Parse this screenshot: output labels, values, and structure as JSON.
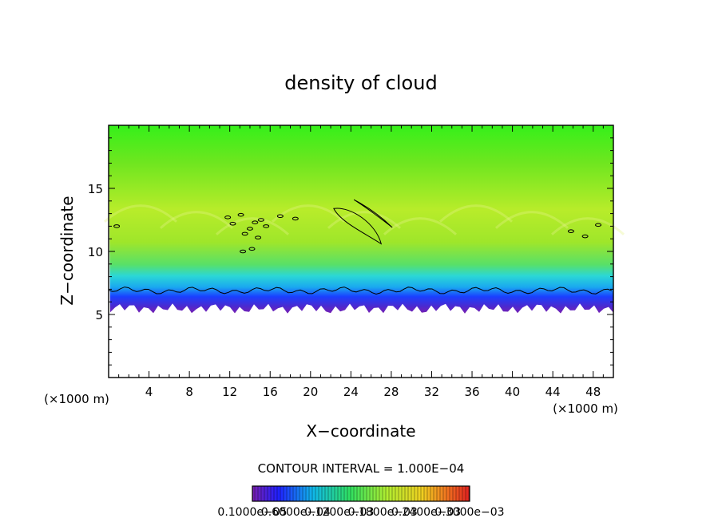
{
  "chart_data": {
    "type": "heatmap",
    "title": "density of cloud",
    "xlabel": "X−coordinate",
    "ylabel": "Z−coordinate",
    "x_unit_left": "(×1000 m)",
    "x_unit_right": "(×1000 m)",
    "xlim": [
      0,
      50
    ],
    "ylim": [
      0,
      20
    ],
    "x_ticks": [
      4,
      8,
      12,
      16,
      20,
      24,
      28,
      32,
      36,
      40,
      44,
      48
    ],
    "y_ticks": [
      5,
      10,
      15
    ],
    "contour_interval_label": "CONTOUR INTERVAL = 1.000E−04",
    "colorbar_labels": [
      "0.1000e−05",
      "0.6000e−04",
      "0.1200e−03",
      "0.1800e−03",
      "0.2400e−03",
      "0.3000e−03"
    ],
    "cloud_base_km": 5.5,
    "cloud_top_km": 20,
    "colors": {
      "top": "#3cf21c",
      "mid": "#9ee62a",
      "band_cyan": "#27d3de",
      "band_blue": "#1040ff",
      "base": "#7a1fb0"
    }
  }
}
